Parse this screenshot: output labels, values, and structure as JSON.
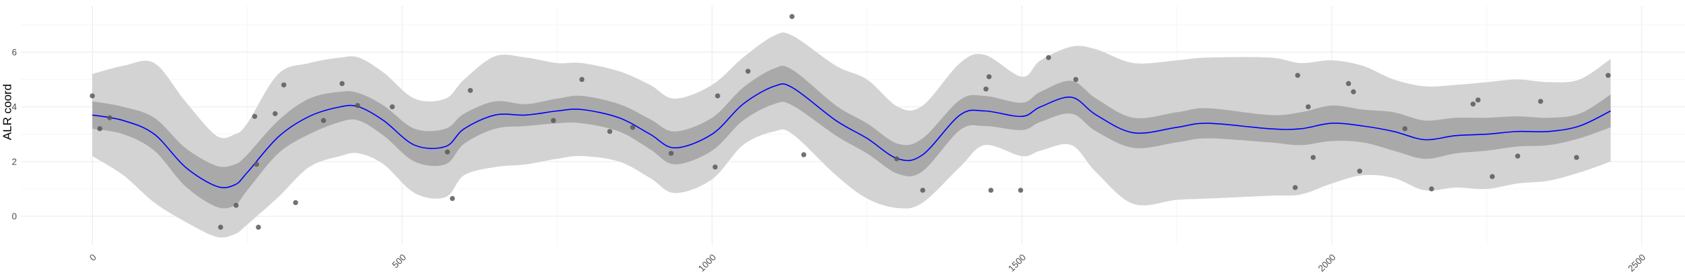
{
  "chart_data": {
    "type": "line",
    "title": "",
    "xlabel": "",
    "ylabel": "ALR coord",
    "xlim": [
      -115,
      2570
    ],
    "ylim": [
      -1.05,
      7.7
    ],
    "x_ticks": [
      0,
      500,
      1000,
      1500,
      2000,
      2500
    ],
    "x_tick_labels": [
      "0",
      "500",
      "1000",
      "1500",
      "2000",
      "2500"
    ],
    "y_ticks": [
      0,
      2,
      4,
      6
    ],
    "y_tick_labels": [
      "0",
      "2",
      "4",
      "6"
    ],
    "grid": true,
    "colors": {
      "fit_line": "#0000ff",
      "inner_band": "#a9a9a9",
      "outer_band": "#d3d3d3",
      "points": "#595959"
    },
    "fit": {
      "name": "",
      "x": [
        0,
        50,
        100,
        150,
        200,
        230,
        250,
        300,
        350,
        400,
        430,
        470,
        520,
        570,
        600,
        650,
        700,
        750,
        790,
        850,
        900,
        940,
        1000,
        1050,
        1100,
        1130,
        1200,
        1250,
        1300,
        1340,
        1400,
        1440,
        1500,
        1530,
        1580,
        1620,
        1680,
        1750,
        1800,
        1900,
        1950,
        2000,
        2050,
        2100,
        2150,
        2200,
        2250,
        2300,
        2350,
        2400,
        2450
      ],
      "y": [
        3.7,
        3.5,
        3.0,
        1.8,
        1.1,
        1.15,
        1.6,
        2.9,
        3.65,
        4.0,
        4.0,
        3.5,
        2.6,
        2.55,
        3.2,
        3.7,
        3.7,
        3.85,
        3.9,
        3.6,
        3.0,
        2.5,
        3.0,
        4.1,
        4.75,
        4.7,
        3.5,
        2.85,
        2.1,
        2.25,
        3.7,
        3.85,
        3.65,
        4.0,
        4.35,
        3.7,
        3.05,
        3.25,
        3.4,
        3.2,
        3.2,
        3.4,
        3.3,
        3.1,
        2.8,
        2.95,
        3.0,
        3.1,
        3.1,
        3.3,
        3.85
      ],
      "inner_lo": [
        3.2,
        3.0,
        2.4,
        1.1,
        0.35,
        0.4,
        0.95,
        2.3,
        3.0,
        3.45,
        3.5,
        2.95,
        2.0,
        1.9,
        2.65,
        3.2,
        3.3,
        3.4,
        3.4,
        3.1,
        2.45,
        1.9,
        2.4,
        3.5,
        4.1,
        4.05,
        2.95,
        2.3,
        1.55,
        1.65,
        3.15,
        3.3,
        3.15,
        3.45,
        3.75,
        3.1,
        2.5,
        2.7,
        2.85,
        2.7,
        2.6,
        2.75,
        2.7,
        2.4,
        2.1,
        2.3,
        2.4,
        2.55,
        2.6,
        2.85,
        3.25
      ],
      "inner_hi": [
        4.2,
        4.0,
        3.6,
        2.5,
        1.85,
        1.9,
        2.25,
        3.5,
        4.3,
        4.55,
        4.5,
        4.05,
        3.2,
        3.2,
        3.75,
        4.2,
        4.1,
        4.3,
        4.4,
        4.1,
        3.55,
        3.1,
        3.6,
        4.7,
        5.4,
        5.35,
        4.05,
        3.4,
        2.65,
        2.85,
        4.25,
        4.4,
        4.15,
        4.55,
        4.95,
        4.3,
        3.6,
        3.8,
        3.95,
        3.7,
        3.8,
        4.05,
        3.9,
        3.8,
        3.5,
        3.6,
        3.6,
        3.65,
        3.6,
        3.75,
        4.45
      ],
      "outer_lo": [
        2.2,
        1.5,
        0.5,
        -0.2,
        -0.75,
        -0.65,
        -0.3,
        0.7,
        1.8,
        2.2,
        2.3,
        1.9,
        0.85,
        0.7,
        1.5,
        1.8,
        1.9,
        2.1,
        2.2,
        2.0,
        1.4,
        0.85,
        1.35,
        2.6,
        3.1,
        3.0,
        1.5,
        0.65,
        0.3,
        0.5,
        1.8,
        2.6,
        2.2,
        2.4,
        2.6,
        1.6,
        0.45,
        0.6,
        0.65,
        0.75,
        0.8,
        1.2,
        1.5,
        1.4,
        0.95,
        1.05,
        1.0,
        1.2,
        1.3,
        1.6,
        2.0
      ],
      "outer_hi": [
        5.2,
        5.5,
        5.6,
        4.2,
        2.95,
        3.0,
        3.4,
        5.2,
        5.6,
        5.8,
        5.8,
        5.25,
        4.3,
        4.3,
        5.0,
        5.85,
        5.8,
        5.6,
        5.6,
        5.3,
        4.8,
        4.3,
        4.8,
        5.8,
        6.6,
        6.6,
        5.5,
        5.0,
        4.0,
        4.05,
        5.6,
        5.9,
        5.1,
        5.7,
        6.2,
        6.1,
        5.6,
        5.7,
        5.8,
        5.8,
        5.6,
        5.7,
        5.5,
        5.0,
        4.75,
        4.8,
        4.9,
        5.0,
        4.9,
        5.0,
        5.75
      ]
    },
    "points": {
      "x": [
        0,
        12,
        28,
        207,
        232,
        262,
        265,
        268,
        295,
        309,
        328,
        373,
        403,
        428,
        484,
        573,
        581,
        610,
        744,
        790,
        835,
        872,
        934,
        1005,
        1009,
        1058,
        1129,
        1148,
        1298,
        1340,
        1442,
        1447,
        1450,
        1498,
        1543,
        1587,
        1941,
        1945,
        1962,
        1970,
        2027,
        2035,
        2045,
        2118,
        2161,
        2228,
        2236,
        2259,
        2300,
        2337,
        2395,
        2446
      ],
      "y": [
        4.4,
        3.2,
        3.6,
        -0.4,
        0.4,
        3.65,
        1.9,
        -0.4,
        3.75,
        4.8,
        0.5,
        3.5,
        4.85,
        4.05,
        4.0,
        2.35,
        0.65,
        4.6,
        3.5,
        5.0,
        3.1,
        3.25,
        2.3,
        1.8,
        4.4,
        5.3,
        7.3,
        2.25,
        2.1,
        0.95,
        4.65,
        5.1,
        0.95,
        0.95,
        5.8,
        5.0,
        1.05,
        5.15,
        4.0,
        2.15,
        4.85,
        4.55,
        1.65,
        3.2,
        1.0,
        4.1,
        4.25,
        1.45,
        2.2,
        4.2,
        2.15,
        5.15
      ]
    }
  }
}
